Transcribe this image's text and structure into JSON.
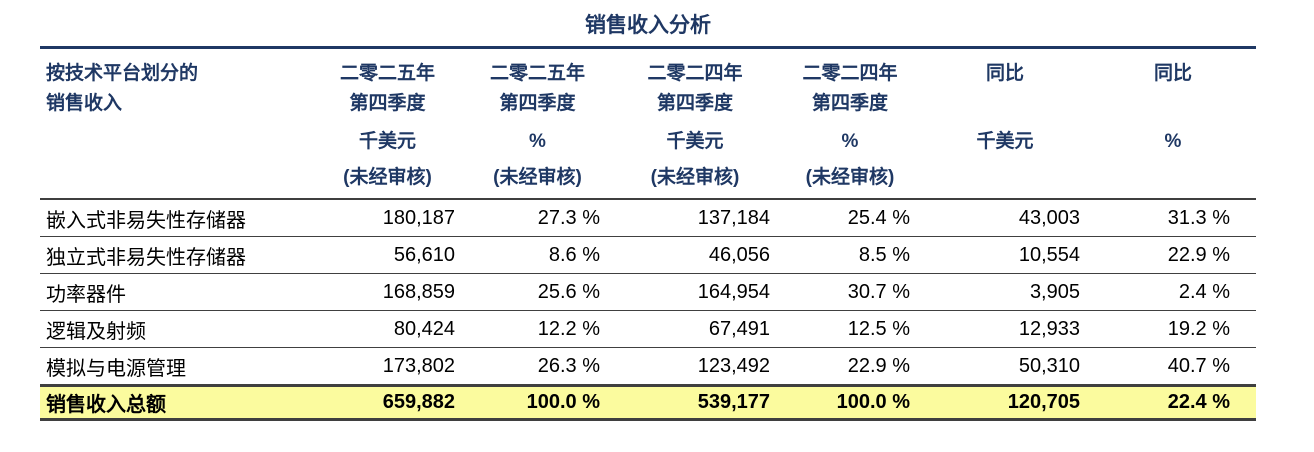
{
  "title": "销售收入分析",
  "colors": {
    "header_navy": "#1F3864",
    "total_highlight": "#FBFB9E",
    "rule_dark": "#3F3F3F",
    "body_text": "#000000"
  },
  "table": {
    "row_header": {
      "line1": "按技术平台划分的",
      "line2": "销售收入"
    },
    "columns": [
      {
        "line1": "二零二五年",
        "line2": "第四季度",
        "unit": "千美元",
        "note": "(未经审核)"
      },
      {
        "line1": "二零二五年",
        "line2": "第四季度",
        "unit": "%",
        "note": "(未经审核)"
      },
      {
        "line1": "二零二四年",
        "line2": "第四季度",
        "unit": "千美元",
        "note": "(未经审核)"
      },
      {
        "line1": "二零二四年",
        "line2": "第四季度",
        "unit": "%",
        "note": "(未经审核)"
      },
      {
        "line1": "同比",
        "line2": "",
        "unit": "千美元",
        "note": ""
      },
      {
        "line1": "同比",
        "line2": "",
        "unit": "%",
        "note": ""
      }
    ],
    "rows": [
      {
        "label": "嵌入式非易失性存储器",
        "values": [
          "180,187",
          "27.3 %",
          "137,184",
          "25.4 %",
          "43,003",
          "31.3 %"
        ]
      },
      {
        "label": "独立式非易失性存储器",
        "values": [
          "56,610",
          "8.6 %",
          "46,056",
          "8.5 %",
          "10,554",
          "22.9 %"
        ]
      },
      {
        "label": "功率器件",
        "values": [
          "168,859",
          "25.6 %",
          "164,954",
          "30.7 %",
          "3,905",
          "2.4 %"
        ]
      },
      {
        "label": "逻辑及射频",
        "values": [
          "80,424",
          "12.2 %",
          "67,491",
          "12.5 %",
          "12,933",
          "19.2 %"
        ]
      },
      {
        "label": "模拟与电源管理",
        "values": [
          "173,802",
          "26.3 %",
          "123,492",
          "22.9 %",
          "50,310",
          "40.7 %"
        ]
      }
    ],
    "total": {
      "label": "销售收入总额",
      "values": [
        "659,882",
        "100.0 %",
        "539,177",
        "100.0 %",
        "120,705",
        "22.4 %"
      ]
    }
  }
}
